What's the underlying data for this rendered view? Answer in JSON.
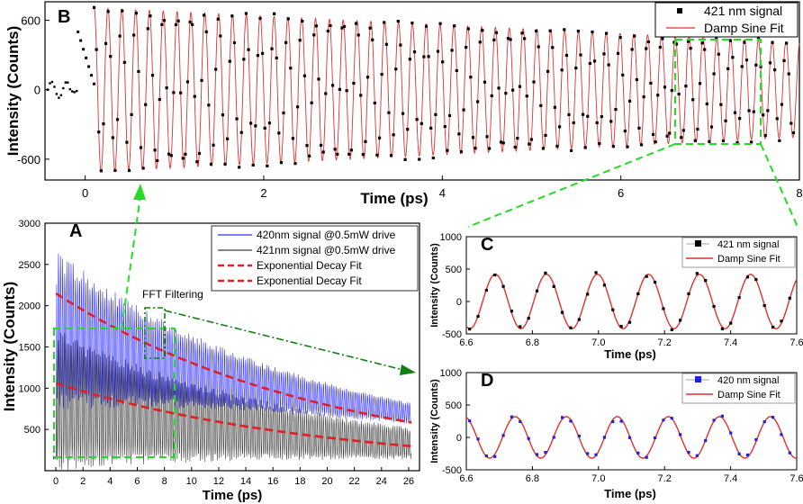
{
  "chart_data": [
    {
      "panel": "B",
      "type": "line",
      "xlabel": "Time (ps)",
      "ylabel": "Intensity (Counts)",
      "xlim": [
        -0.45,
        8
      ],
      "ylim": [
        -780,
        760
      ],
      "xticks": [
        0,
        2,
        4,
        6,
        8
      ],
      "yticks": [
        -600,
        0,
        600
      ],
      "legend": [
        "421 nm signal",
        "Damp Sine Fit"
      ],
      "legend_position": "top-right",
      "fit": {
        "amplitude_start": 710,
        "amplitude_end": 410,
        "period_ps": 0.155,
        "t_start": 0.1,
        "t_end": 8
      },
      "series": [
        {
          "name": "421 nm signal",
          "style": "square markers",
          "color": "#000000"
        },
        {
          "name": "Damp Sine Fit",
          "style": "line",
          "color": "#e03030"
        }
      ]
    },
    {
      "panel": "A",
      "type": "line",
      "xlabel": "Time (ps)",
      "ylabel": "Intensity (Counts)",
      "xlim": [
        -0.8,
        26.8
      ],
      "ylim": [
        0,
        3000
      ],
      "xticks": [
        0,
        2,
        4,
        6,
        8,
        10,
        12,
        14,
        16,
        18,
        20,
        22,
        24,
        26
      ],
      "yticks": [
        500,
        1000,
        1500,
        2000,
        2500,
        3000
      ],
      "legend": [
        "420nm signal @0.5mW drive",
        "421nm signal @0.5mW drive",
        "Exponential Decay Fit",
        "Exponential Decay Fit"
      ],
      "legend_position": "top-right",
      "annotation": "FFT Filtering",
      "series": [
        {
          "name": "420nm signal @0.5mW drive",
          "color": "#3232ff",
          "mean_start": 1700,
          "mean_end": 700,
          "amp_start": 900,
          "amp_end": 120
        },
        {
          "name": "421nm signal @0.5mW drive",
          "color": "#404040",
          "mean_start": 850,
          "mean_end": 330,
          "amp_start": 800,
          "amp_end": 180
        },
        {
          "name": "Exponential Decay Fit",
          "color": "#e02020",
          "style": "dashed",
          "start": 2150,
          "end": 590
        },
        {
          "name": "Exponential Decay Fit",
          "color": "#e02020",
          "style": "dashed",
          "start": 1060,
          "end": 300
        }
      ]
    },
    {
      "panel": "C",
      "type": "line",
      "xlabel": "Time (ps)",
      "ylabel": "Intensity (Counts)",
      "xlim": [
        6.6,
        7.6
      ],
      "ylim": [
        -500,
        1000
      ],
      "xticks": [
        6.6,
        6.8,
        7.0,
        7.2,
        7.4,
        7.6
      ],
      "xtick_labels": [
        "6.6",
        "6.8",
        "7.0",
        "7.2",
        "7.4",
        "7.6"
      ],
      "yticks": [
        -500,
        0,
        500,
        1000
      ],
      "legend": [
        "421 nm signal",
        "Damp Sine Fit"
      ],
      "legend_position": "top-right",
      "fit": {
        "amplitude": 420,
        "period_ps": 0.1545,
        "peak_at": 6.688
      },
      "series": [
        {
          "name": "421 nm signal",
          "style": "square markers",
          "color": "#000000"
        },
        {
          "name": "Damp Sine Fit",
          "style": "line",
          "color": "#e03030"
        }
      ]
    },
    {
      "panel": "D",
      "type": "line",
      "xlabel": "Time (ps)",
      "ylabel": "Intensity (Counts)",
      "xlim": [
        6.6,
        7.6
      ],
      "ylim": [
        -500,
        1000
      ],
      "xticks": [
        6.6,
        6.8,
        7.0,
        7.2,
        7.4,
        7.6
      ],
      "xtick_labels": [
        "6.6",
        "6.8",
        "7.0",
        "7.2",
        "7.4",
        "7.6"
      ],
      "yticks": [
        -500,
        0,
        500,
        1000
      ],
      "legend": [
        "420 nm signal",
        "Damp Sine Fit"
      ],
      "legend_position": "top-right",
      "fit": {
        "amplitude": 320,
        "period_ps": 0.1545,
        "peak_at": 6.748
      },
      "series": [
        {
          "name": "420 nm signal",
          "style": "square markers",
          "color": "#1f1fdf"
        },
        {
          "name": "Damp Sine Fit",
          "style": "line",
          "color": "#e03030"
        }
      ]
    }
  ],
  "panel_letters": {
    "A": "A",
    "B": "B",
    "C": "C",
    "D": "D"
  },
  "colors": {
    "zoom_box": "#22dd22",
    "arrow_dark": "#108010",
    "fit_red": "#e03030",
    "blue": "#3232ff"
  }
}
